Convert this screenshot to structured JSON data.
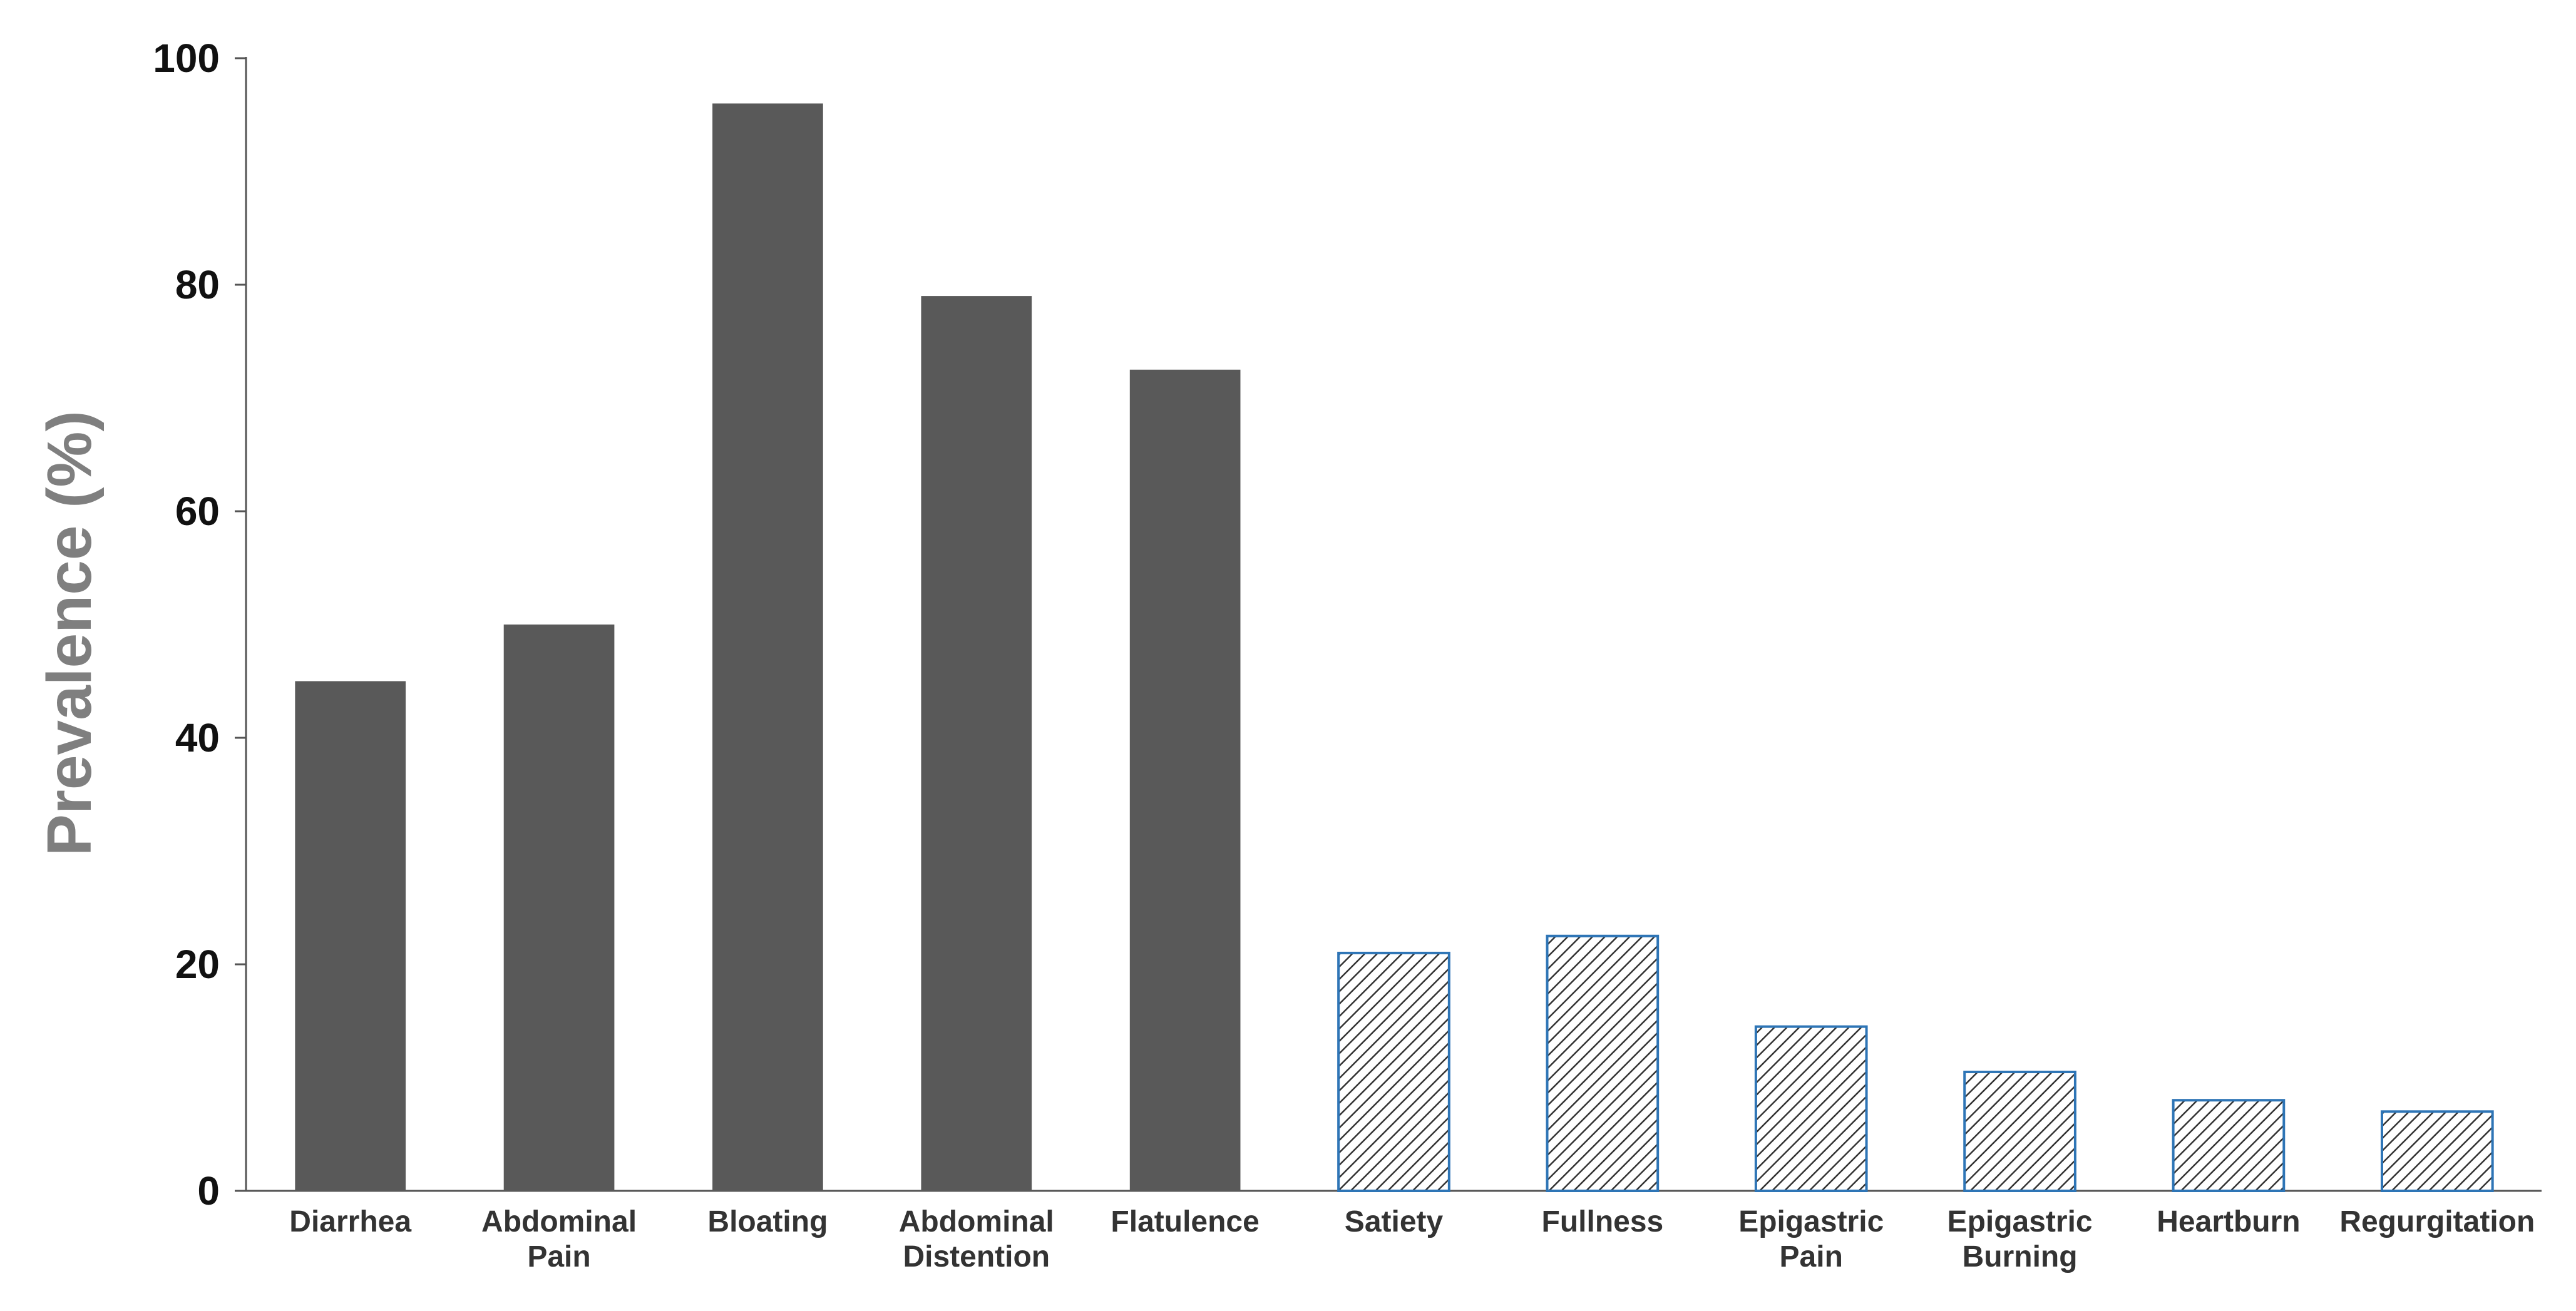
{
  "chart_data": {
    "type": "bar",
    "title": "",
    "xlabel": "",
    "ylabel": "Prevalence (%)",
    "ylim": [
      0,
      100
    ],
    "yticks": [
      0,
      20,
      40,
      60,
      80,
      100
    ],
    "grid": false,
    "legend": "none",
    "categories": [
      "Diarrhea",
      "Abdominal Pain",
      "Bloating",
      "Abdominal Distention",
      "Flatulence",
      "Satiety",
      "Fullness",
      "Epigastric Pain",
      "Epigastric Burning",
      "Heartburn",
      "Regurgitation"
    ],
    "category_lines": [
      [
        "Diarrhea"
      ],
      [
        "Abdominal",
        "Pain"
      ],
      [
        "Bloating"
      ],
      [
        "Abdominal",
        "Distention"
      ],
      [
        "Flatulence"
      ],
      [
        "Satiety"
      ],
      [
        "Fullness"
      ],
      [
        "Epigastric",
        "Pain"
      ],
      [
        "Epigastric",
        "Burning"
      ],
      [
        "Heartburn"
      ],
      [
        "Regurgitation"
      ]
    ],
    "values": [
      45,
      50,
      96,
      79,
      72.5,
      21,
      22.5,
      14.5,
      10.5,
      8,
      7
    ],
    "bar_styles": [
      "solid",
      "solid",
      "solid",
      "solid",
      "solid",
      "hatched",
      "hatched",
      "hatched",
      "hatched",
      "hatched",
      "hatched"
    ],
    "colors": {
      "solid_fill": "#595959",
      "hatch_stroke": "#333333",
      "hatch_border": "#2e75b6",
      "axis": "#555555"
    }
  }
}
